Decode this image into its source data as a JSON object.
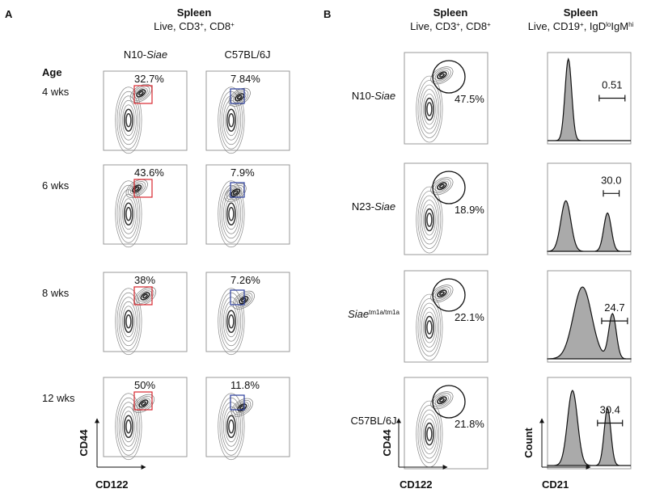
{
  "panel_a": {
    "label": "A",
    "title": "Spleen",
    "subtitle": [
      "Live, CD3",
      "+",
      ", CD8",
      "+"
    ],
    "columns": [
      [
        "N10-",
        "Siae"
      ],
      [
        "C57BL/6J"
      ]
    ],
    "row_header": "Age",
    "rows": [
      {
        "age": "4 wks",
        "percents": [
          "32.7%",
          "7.84%"
        ]
      },
      {
        "age": "6 wks",
        "percents": [
          "43.6%",
          "7.9%"
        ]
      },
      {
        "age": "8 wks",
        "percents": [
          "38%",
          "7.26%"
        ]
      },
      {
        "age": "12 wks",
        "percents": [
          "50%",
          "11.8%"
        ]
      }
    ],
    "x_axis": "CD122",
    "y_axis": "CD44"
  },
  "panel_b": {
    "label": "B",
    "columns": [
      {
        "title": "Spleen",
        "subtitle": [
          "Live, CD3",
          "+",
          ", CD8",
          "+"
        ]
      },
      {
        "title": "Spleen",
        "subtitle": [
          "Live, CD19",
          "+",
          ", IgD",
          "lo",
          "IgM",
          "hi"
        ]
      }
    ],
    "rows": [
      {
        "strain": [
          "N10-",
          "Siae"
        ],
        "percent": "47.5%",
        "value": "0.51"
      },
      {
        "strain": [
          "N23-",
          "Siae"
        ],
        "percent": "18.9%",
        "value": "30.0"
      },
      {
        "strain": [
          "Siae",
          "tm1a/tm1a"
        ],
        "percent": "22.1%",
        "value": "24.7"
      },
      {
        "strain": [
          "C57BL/6J"
        ],
        "percent": "21.8%",
        "value": "30.4"
      }
    ],
    "contour_x_axis": "CD122",
    "contour_y_axis": "CD44",
    "hist_x_axis": "CD21",
    "hist_y_axis": "Count"
  }
}
